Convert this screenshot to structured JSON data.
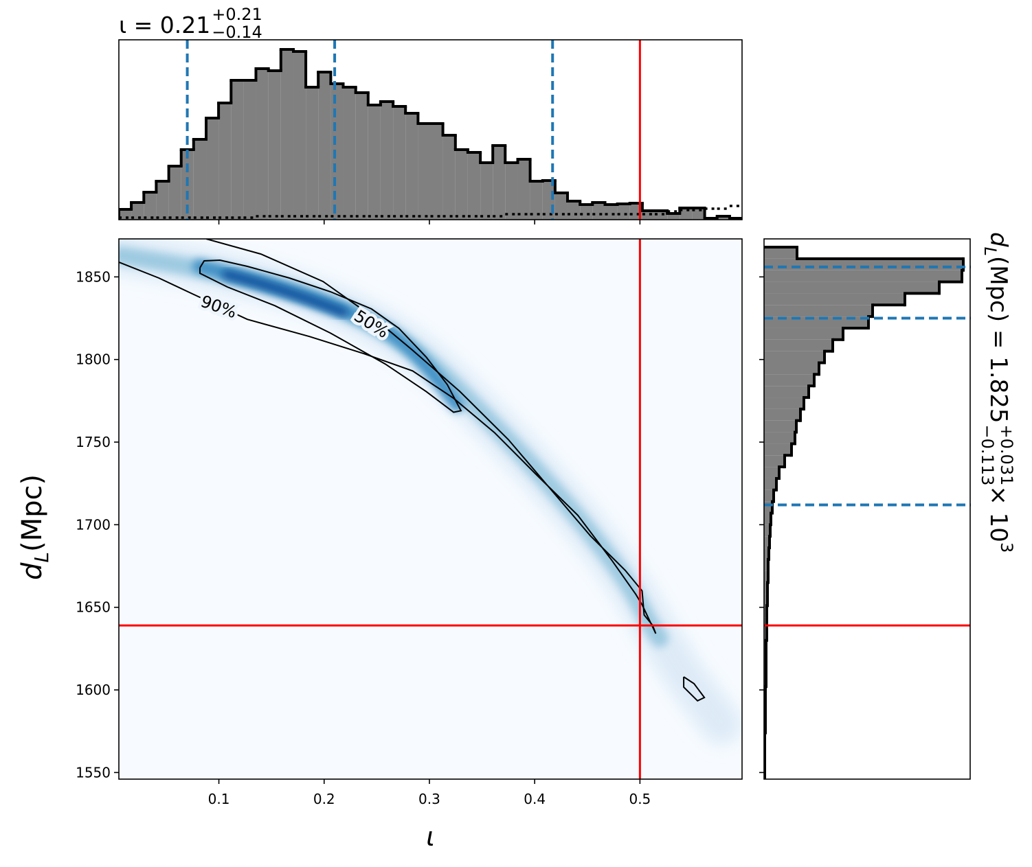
{
  "chart_data": [
    {
      "type": "histogram",
      "title": {
        "text": "ι = 0.21",
        "upper": "+0.21",
        "lower": "−0.14"
      },
      "bins": [
        0.005,
        0.0168,
        0.0287,
        0.0405,
        0.0524,
        0.0642,
        0.076,
        0.0879,
        0.0997,
        0.1116,
        0.1234,
        0.1352,
        0.1471,
        0.1589,
        0.1708,
        0.1826,
        0.1944,
        0.2063,
        0.2181,
        0.23,
        0.2418,
        0.2536,
        0.2655,
        0.2773,
        0.2892,
        0.301,
        0.3128,
        0.3247,
        0.3365,
        0.3484,
        0.3602,
        0.372,
        0.3839,
        0.3957,
        0.4076,
        0.4194,
        0.4312,
        0.4431,
        0.4549,
        0.4668,
        0.4786,
        0.4904,
        0.5023,
        0.5141,
        0.526,
        0.5378,
        0.5496,
        0.5615,
        0.5733,
        0.5852,
        0.597
      ],
      "values": [
        15,
        25,
        40,
        56,
        78,
        102,
        117,
        148,
        170,
        203,
        203,
        220,
        217,
        248,
        245,
        193,
        215,
        198,
        193,
        185,
        167,
        172,
        165,
        155,
        140,
        140,
        123,
        102,
        98,
        83,
        108,
        83,
        88,
        56,
        57,
        39,
        27,
        22,
        25,
        22,
        23,
        24,
        13,
        13,
        9,
        17,
        17,
        2,
        5,
        2
      ],
      "reference_values": [
        3,
        3,
        3,
        3,
        3,
        3,
        3,
        3,
        3,
        3,
        3,
        5,
        5,
        5,
        5,
        5,
        5,
        5,
        5,
        5,
        5,
        5,
        5,
        5,
        5,
        5,
        5,
        5,
        5,
        5,
        5,
        8,
        8,
        8,
        8,
        8,
        8,
        8,
        8,
        8,
        8,
        8,
        8,
        8,
        12,
        14,
        14,
        16,
        16,
        20
      ],
      "color": "#808080",
      "edge_color": "#000000",
      "xlim": [
        0.005,
        0.597
      ],
      "xticks": [
        0.1,
        0.2,
        0.3,
        0.4,
        0.5
      ],
      "ylim": [
        0,
        262
      ],
      "quantiles": [
        0.07,
        0.21,
        0.417
      ],
      "quantile_color": "#1f77b4",
      "truth": 0.5,
      "truth_color": "#ff0000"
    },
    {
      "type": "contour",
      "x_label": "ι",
      "y_label": {
        "symbol": "d",
        "subscript": "L",
        "unit": " (Mpc)"
      },
      "xlim": [
        0.005,
        0.597
      ],
      "ylim": [
        1546,
        1873
      ],
      "xticks": [
        0.1,
        0.2,
        0.3,
        0.4,
        0.5
      ],
      "yticks": [
        1550,
        1600,
        1650,
        1700,
        1750,
        1800,
        1850
      ],
      "contours": [
        {
          "level": "90%",
          "x": [
            0.005,
            0.043,
            0.075,
            0.127,
            0.186,
            0.238,
            0.284,
            0.323,
            0.362,
            0.401,
            0.441,
            0.473,
            0.496,
            0.502,
            0.515,
            0.512,
            0.504,
            0.502,
            0.486,
            0.453,
            0.414,
            0.375,
            0.329,
            0.284,
            0.245,
            0.199,
            0.14,
            0.088,
            null,
            0.5416,
            0.5514,
            0.5612,
            0.5547,
            0.5416,
            0.5416
          ],
          "y": [
            1858.9,
            1849.3,
            1839.7,
            1824.3,
            1813.9,
            1803.5,
            1793.1,
            1776.5,
            1755.6,
            1730.7,
            1705.7,
            1678.7,
            1657.9,
            1651.6,
            1634.1,
            1639.1,
            1645.4,
            1660,
            1672.4,
            1693.2,
            1722.4,
            1751.5,
            1780.6,
            1805.6,
            1826.4,
            1847.2,
            1863.8,
            1873,
            null,
            1607.9,
            1603.8,
            1595.4,
            1593.4,
            1601.7,
            1607.9
          ]
        },
        {
          "level": "50%",
          "x": [
            0.082,
            0.086,
            0.101,
            0.127,
            0.167,
            0.206,
            0.245,
            0.271,
            0.297,
            0.317,
            0.33,
            0.323,
            0.297,
            0.258,
            0.206,
            0.153,
            0.108,
            0.082,
            0.082
          ],
          "y": [
            1855.5,
            1859.7,
            1860.1,
            1856.4,
            1849.3,
            1841,
            1830.6,
            1818.9,
            1801.4,
            1784.8,
            1769,
            1768.1,
            1780.6,
            1797.3,
            1816,
            1832.6,
            1843.9,
            1852.2,
            1855.5
          ]
        }
      ],
      "truth": [
        0.5,
        1639
      ],
      "truth_color": "#ff0000"
    },
    {
      "type": "histogram",
      "orientation": "horizontal",
      "title": {
        "symbol": "d",
        "subscript": "L",
        "text": " (Mpc) = 1.825",
        "upper": "+0.031",
        "lower": "−0.113",
        "times": " × 10",
        "exponent": "3"
      },
      "bins": [
        1546,
        1553,
        1560,
        1567,
        1574,
        1581,
        1588,
        1595,
        1602,
        1609,
        1616,
        1623,
        1630,
        1637,
        1644,
        1651,
        1658,
        1665,
        1672,
        1679,
        1686,
        1693,
        1700,
        1707,
        1714,
        1721,
        1728,
        1735,
        1742,
        1749,
        1756,
        1763,
        1770,
        1777,
        1784,
        1791,
        1798,
        1805,
        1812,
        1819,
        1826,
        1833,
        1840,
        1847,
        1854,
        1861,
        1868
      ],
      "values": [
        1,
        1,
        1,
        1,
        2,
        2,
        2,
        2,
        3,
        3,
        3,
        3,
        4,
        4,
        4,
        5,
        5,
        6,
        6,
        7,
        8,
        9,
        10,
        12,
        14,
        18,
        22,
        30,
        40,
        45,
        47,
        53,
        58,
        65,
        73,
        80,
        88,
        100,
        115,
        152,
        158,
        205,
        255,
        288,
        290,
        48
      ],
      "color": "#808080",
      "edge_color": "#000000",
      "xlim": [
        0,
        300
      ],
      "ylim": [
        1546,
        1873
      ],
      "yticks": [
        1550,
        1600,
        1650,
        1700,
        1750,
        1800,
        1850
      ],
      "quantiles": [
        1712,
        1825,
        1856
      ],
      "quantile_color": "#1f77b4",
      "truth": 1639,
      "truth_color": "#ff0000"
    }
  ]
}
